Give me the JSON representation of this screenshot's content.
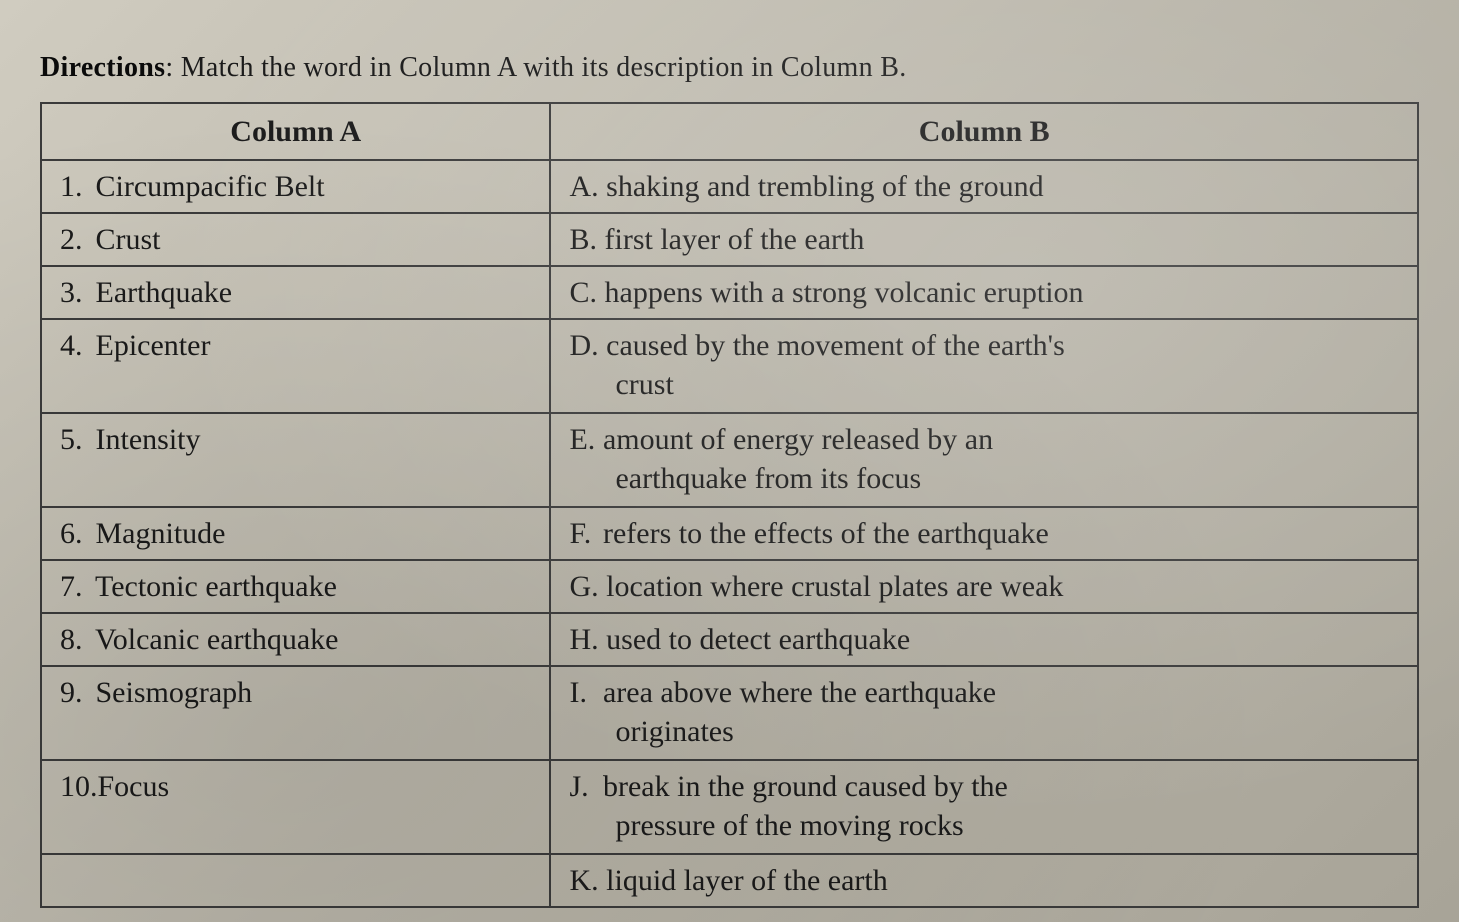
{
  "directions": {
    "label": "Directions",
    "text": ": Match the word in Column A with its description in Column B."
  },
  "headers": {
    "colA": "Column A",
    "colB": "Column B"
  },
  "rows": [
    {
      "a_num": "1.",
      "a_text": "Circumpacific Belt",
      "b_letter": "A.",
      "b_text": "shaking and trembling of the ground"
    },
    {
      "a_num": "2.",
      "a_text": "Crust",
      "b_letter": "B.",
      "b_text": "first layer of the earth"
    },
    {
      "a_num": "3.",
      "a_text": "Earthquake",
      "b_letter": "C.",
      "b_text": "happens with a strong volcanic eruption"
    },
    {
      "a_num": "4.",
      "a_text": "Epicenter",
      "b_letter": "D.",
      "b_text": "caused by the movement of the earth's",
      "b_text2": "crust"
    },
    {
      "a_num": "5.",
      "a_text": "Intensity",
      "b_letter": "E.",
      "b_text": "amount of energy released by an",
      "b_text2": "earthquake from its focus"
    },
    {
      "a_num": "6.",
      "a_text": "Magnitude",
      "b_letter": "F.",
      "b_text": "refers to the effects of the earthquake"
    },
    {
      "a_num": "7.",
      "a_text": "Tectonic earthquake",
      "b_letter": "G.",
      "b_text": "location where crustal plates are weak"
    },
    {
      "a_num": "8.",
      "a_text": "Volcanic earthquake",
      "b_letter": "H.",
      "b_text": "used to detect earthquake"
    },
    {
      "a_num": "9.",
      "a_text": "Seismograph",
      "b_letter": "I.",
      "b_text": "area above where the earthquake",
      "b_text2": "originates"
    },
    {
      "a_num": "10.",
      "a_text": "Focus",
      "b_letter": "J.",
      "b_text": "break in the ground caused by the",
      "b_text2": "pressure of the moving rocks"
    },
    {
      "a_num": "",
      "a_text": "",
      "b_letter": "K.",
      "b_text": "liquid layer of the earth"
    }
  ],
  "colors": {
    "text": "#1a1a1a",
    "border": "#3a3a3a",
    "background": "#c8c4b8"
  },
  "typography": {
    "body_font": "Georgia, serif",
    "cell_fontsize": 30,
    "directions_fontsize": 28
  }
}
